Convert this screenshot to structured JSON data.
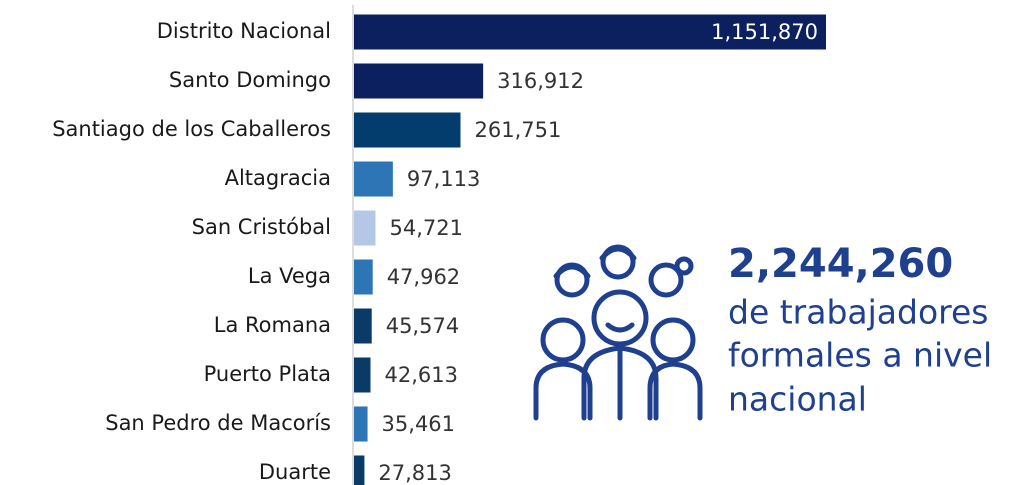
{
  "chart_data": {
    "type": "hbar",
    "categories": [
      "Distrito Nacional",
      "Santo Domingo",
      "Santiago de los Caballeros",
      "Altagracia",
      "San Cristóbal",
      "La Vega",
      "La Romana",
      "Puerto Plata",
      "San Pedro de Macorís",
      "Duarte"
    ],
    "values": [
      1151870,
      316912,
      261751,
      97113,
      54721,
      47962,
      45574,
      42613,
      35461,
      27813
    ],
    "value_labels": [
      "1,151,870",
      "316,912",
      "261,751",
      "97,113",
      "54,721",
      "47,962",
      "45,574",
      "42,613",
      "35,461",
      "27,813"
    ],
    "colors": [
      "#0c1f5e",
      "#0c1f5e",
      "#033d6e",
      "#2e75b6",
      "#b4c7e7",
      "#2e75b6",
      "#0a3b68",
      "#0a3b68",
      "#2e75b6",
      "#0a3b68"
    ],
    "annotations": [
      "2,244,260",
      "de trabajadores",
      "formales a nivel",
      "nacional"
    ]
  }
}
